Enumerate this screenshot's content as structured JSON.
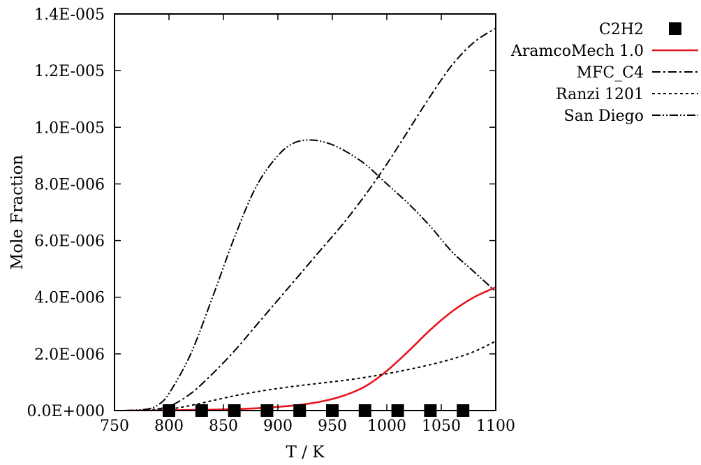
{
  "chart_data": {
    "type": "line",
    "xlabel": "T / K",
    "ylabel": "Mole Fraction",
    "xlim": [
      750,
      1100
    ],
    "ylim": [
      0,
      1.4e-05
    ],
    "xticks": [
      {
        "value": 750,
        "label": "750"
      },
      {
        "value": 800,
        "label": "800"
      },
      {
        "value": 850,
        "label": "850"
      },
      {
        "value": 900,
        "label": "900"
      },
      {
        "value": 950,
        "label": "950"
      },
      {
        "value": 1000,
        "label": "1000"
      },
      {
        "value": 1050,
        "label": "1050"
      },
      {
        "value": 1100,
        "label": "1100"
      }
    ],
    "yticks": [
      {
        "value": 0,
        "label": "0.0E+000"
      },
      {
        "value": 2e-06,
        "label": "2.0E-006"
      },
      {
        "value": 4e-06,
        "label": "4.0E-006"
      },
      {
        "value": 6e-06,
        "label": "6.0E-006"
      },
      {
        "value": 8e-06,
        "label": "8.0E-006"
      },
      {
        "value": 1e-05,
        "label": "1.0E-005"
      },
      {
        "value": 1.2e-05,
        "label": "1.2E-005"
      },
      {
        "value": 1.4e-05,
        "label": "1.4E-005"
      }
    ],
    "legend_position": "top-right, outside plot",
    "grid": false,
    "series": [
      {
        "name": "C2H2",
        "kind": "markers",
        "marker": "filled-square",
        "color": "#000000",
        "x": [
          800,
          830,
          860,
          890,
          920,
          950,
          980,
          1010,
          1040,
          1070
        ],
        "y": [
          0,
          0,
          0,
          0,
          0,
          0,
          0,
          0,
          0,
          0
        ]
      },
      {
        "name": "AramcoMech 1.0",
        "kind": "line",
        "style": "solid",
        "color": "#e8141c",
        "x": [
          760,
          780,
          800,
          820,
          840,
          860,
          880,
          900,
          920,
          940,
          960,
          980,
          1000,
          1020,
          1040,
          1060,
          1080,
          1100
        ],
        "y": [
          0,
          0,
          1e-08,
          2e-08,
          3e-08,
          5e-08,
          8e-08,
          1.3e-07,
          2e-07,
          3.2e-07,
          5.2e-07,
          8.5e-07,
          1.4e-06,
          2.1e-06,
          2.85e-06,
          3.5e-06,
          4e-06,
          4.35e-06
        ]
      },
      {
        "name": "MFC_C4",
        "kind": "line",
        "style": "dash-dot",
        "color": "#000000",
        "x": [
          760,
          780,
          800,
          820,
          840,
          860,
          880,
          900,
          920,
          940,
          960,
          980,
          1000,
          1020,
          1040,
          1060,
          1080,
          1100
        ],
        "y": [
          0,
          2e-08,
          1.5e-07,
          6e-07,
          1.3e-06,
          2.1e-06,
          3e-06,
          3.9e-06,
          4.8e-06,
          5.7e-06,
          6.6e-06,
          7.6e-06,
          8.7e-06,
          9.9e-06,
          1.11e-05,
          1.22e-05,
          1.3e-05,
          1.35e-05
        ]
      },
      {
        "name": "Ranzi 1201",
        "kind": "line",
        "style": "dotted",
        "color": "#000000",
        "x": [
          760,
          780,
          800,
          820,
          840,
          860,
          880,
          900,
          920,
          940,
          960,
          980,
          1000,
          1020,
          1040,
          1060,
          1080,
          1100
        ],
        "y": [
          0,
          0,
          5e-08,
          1.8e-07,
          3.5e-07,
          5.2e-07,
          6.6e-07,
          7.8e-07,
          8.8e-07,
          9.7e-07,
          1.06e-06,
          1.17e-06,
          1.3e-06,
          1.45e-06,
          1.62e-06,
          1.82e-06,
          2.08e-06,
          2.45e-06
        ]
      },
      {
        "name": "San Diego",
        "kind": "line",
        "style": "dash-dot-dot",
        "color": "#000000",
        "x": [
          760,
          780,
          790,
          800,
          820,
          840,
          860,
          880,
          900,
          915,
          930,
          945,
          960,
          980,
          1000,
          1020,
          1040,
          1060,
          1080,
          1100
        ],
        "y": [
          0,
          5e-08,
          2e-07,
          6e-07,
          2e-06,
          4e-06,
          6.1e-06,
          7.9e-06,
          9e-06,
          9.45e-06,
          9.55e-06,
          9.45e-06,
          9.2e-06,
          8.7e-06,
          8e-06,
          7.3e-06,
          6.5e-06,
          5.6e-06,
          4.9e-06,
          4.2e-06
        ]
      }
    ]
  }
}
